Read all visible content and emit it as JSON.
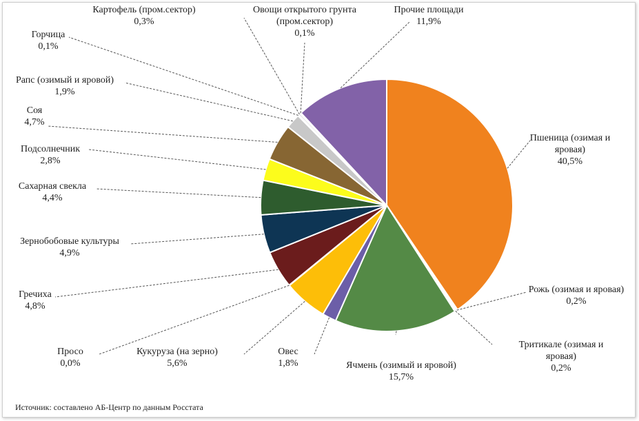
{
  "chart_data": {
    "type": "pie",
    "slices": [
      {
        "label": [
          "Пшеница (озимая и",
          "яровая)"
        ],
        "value_text": "40,5%",
        "value": 40.5,
        "color": "#F0821E"
      },
      {
        "label": [
          "Рожь (озимая и яровая)"
        ],
        "value_text": "0,2%",
        "value": 0.2,
        "color": "#E4E4E4"
      },
      {
        "label": [
          "Тритикале (озимая и",
          "яровая)"
        ],
        "value_text": "0,2%",
        "value": 0.2,
        "color": "#F2F2F2"
      },
      {
        "label": [
          "Ячмень (озимый и яровой)"
        ],
        "value_text": "15,7%",
        "value": 15.7,
        "color": "#548A46"
      },
      {
        "label": [
          "Овес"
        ],
        "value_text": "1,8%",
        "value": 1.8,
        "color": "#6C5EA8"
      },
      {
        "label": [
          "Кукуруза  (на зерно)"
        ],
        "value_text": "5,6%",
        "value": 5.6,
        "color": "#FDBE08"
      },
      {
        "label": [
          "Просо"
        ],
        "value_text": "0,0%",
        "value": 0.0,
        "color": "#8E8E8E"
      },
      {
        "label": [
          "Гречиха"
        ],
        "value_text": "4,8%",
        "value": 4.8,
        "color": "#6B1C1C"
      },
      {
        "label": [
          "Зернобобовые культуры"
        ],
        "value_text": "4,9%",
        "value": 4.9,
        "color": "#0E3554"
      },
      {
        "label": [
          "Сахарная свекла"
        ],
        "value_text": "4,4%",
        "value": 4.4,
        "color": "#2E5C2E"
      },
      {
        "label": [
          "Подсолнечник"
        ],
        "value_text": "2,8%",
        "value": 2.8,
        "color": "#FCFC1C"
      },
      {
        "label": [
          "Соя"
        ],
        "value_text": "4,7%",
        "value": 4.7,
        "color": "#876633"
      },
      {
        "label": [
          "Рапс (озимый и яровой)"
        ],
        "value_text": "1,9%",
        "value": 1.9,
        "color": "#C8C8C8"
      },
      {
        "label": [
          "Горчица"
        ],
        "value_text": "0,1%",
        "value": 0.1,
        "color": "#3D3D3D"
      },
      {
        "label": [
          "Картофель (пром.сектор)"
        ],
        "value_text": "0,3%",
        "value": 0.3,
        "color": "#E9E9E9"
      },
      {
        "label": [
          "Овощи открытого грунта",
          "(пром.сектор)"
        ],
        "value_text": "0,1%",
        "value": 0.1,
        "color": "#B0B0B0"
      },
      {
        "label": [
          "Прочие площади"
        ],
        "value_text": "11,9%",
        "value": 11.9,
        "color": "#8262A8"
      }
    ]
  },
  "source_note": "Источник:  составлено АБ-Центр  по данным Росстата"
}
